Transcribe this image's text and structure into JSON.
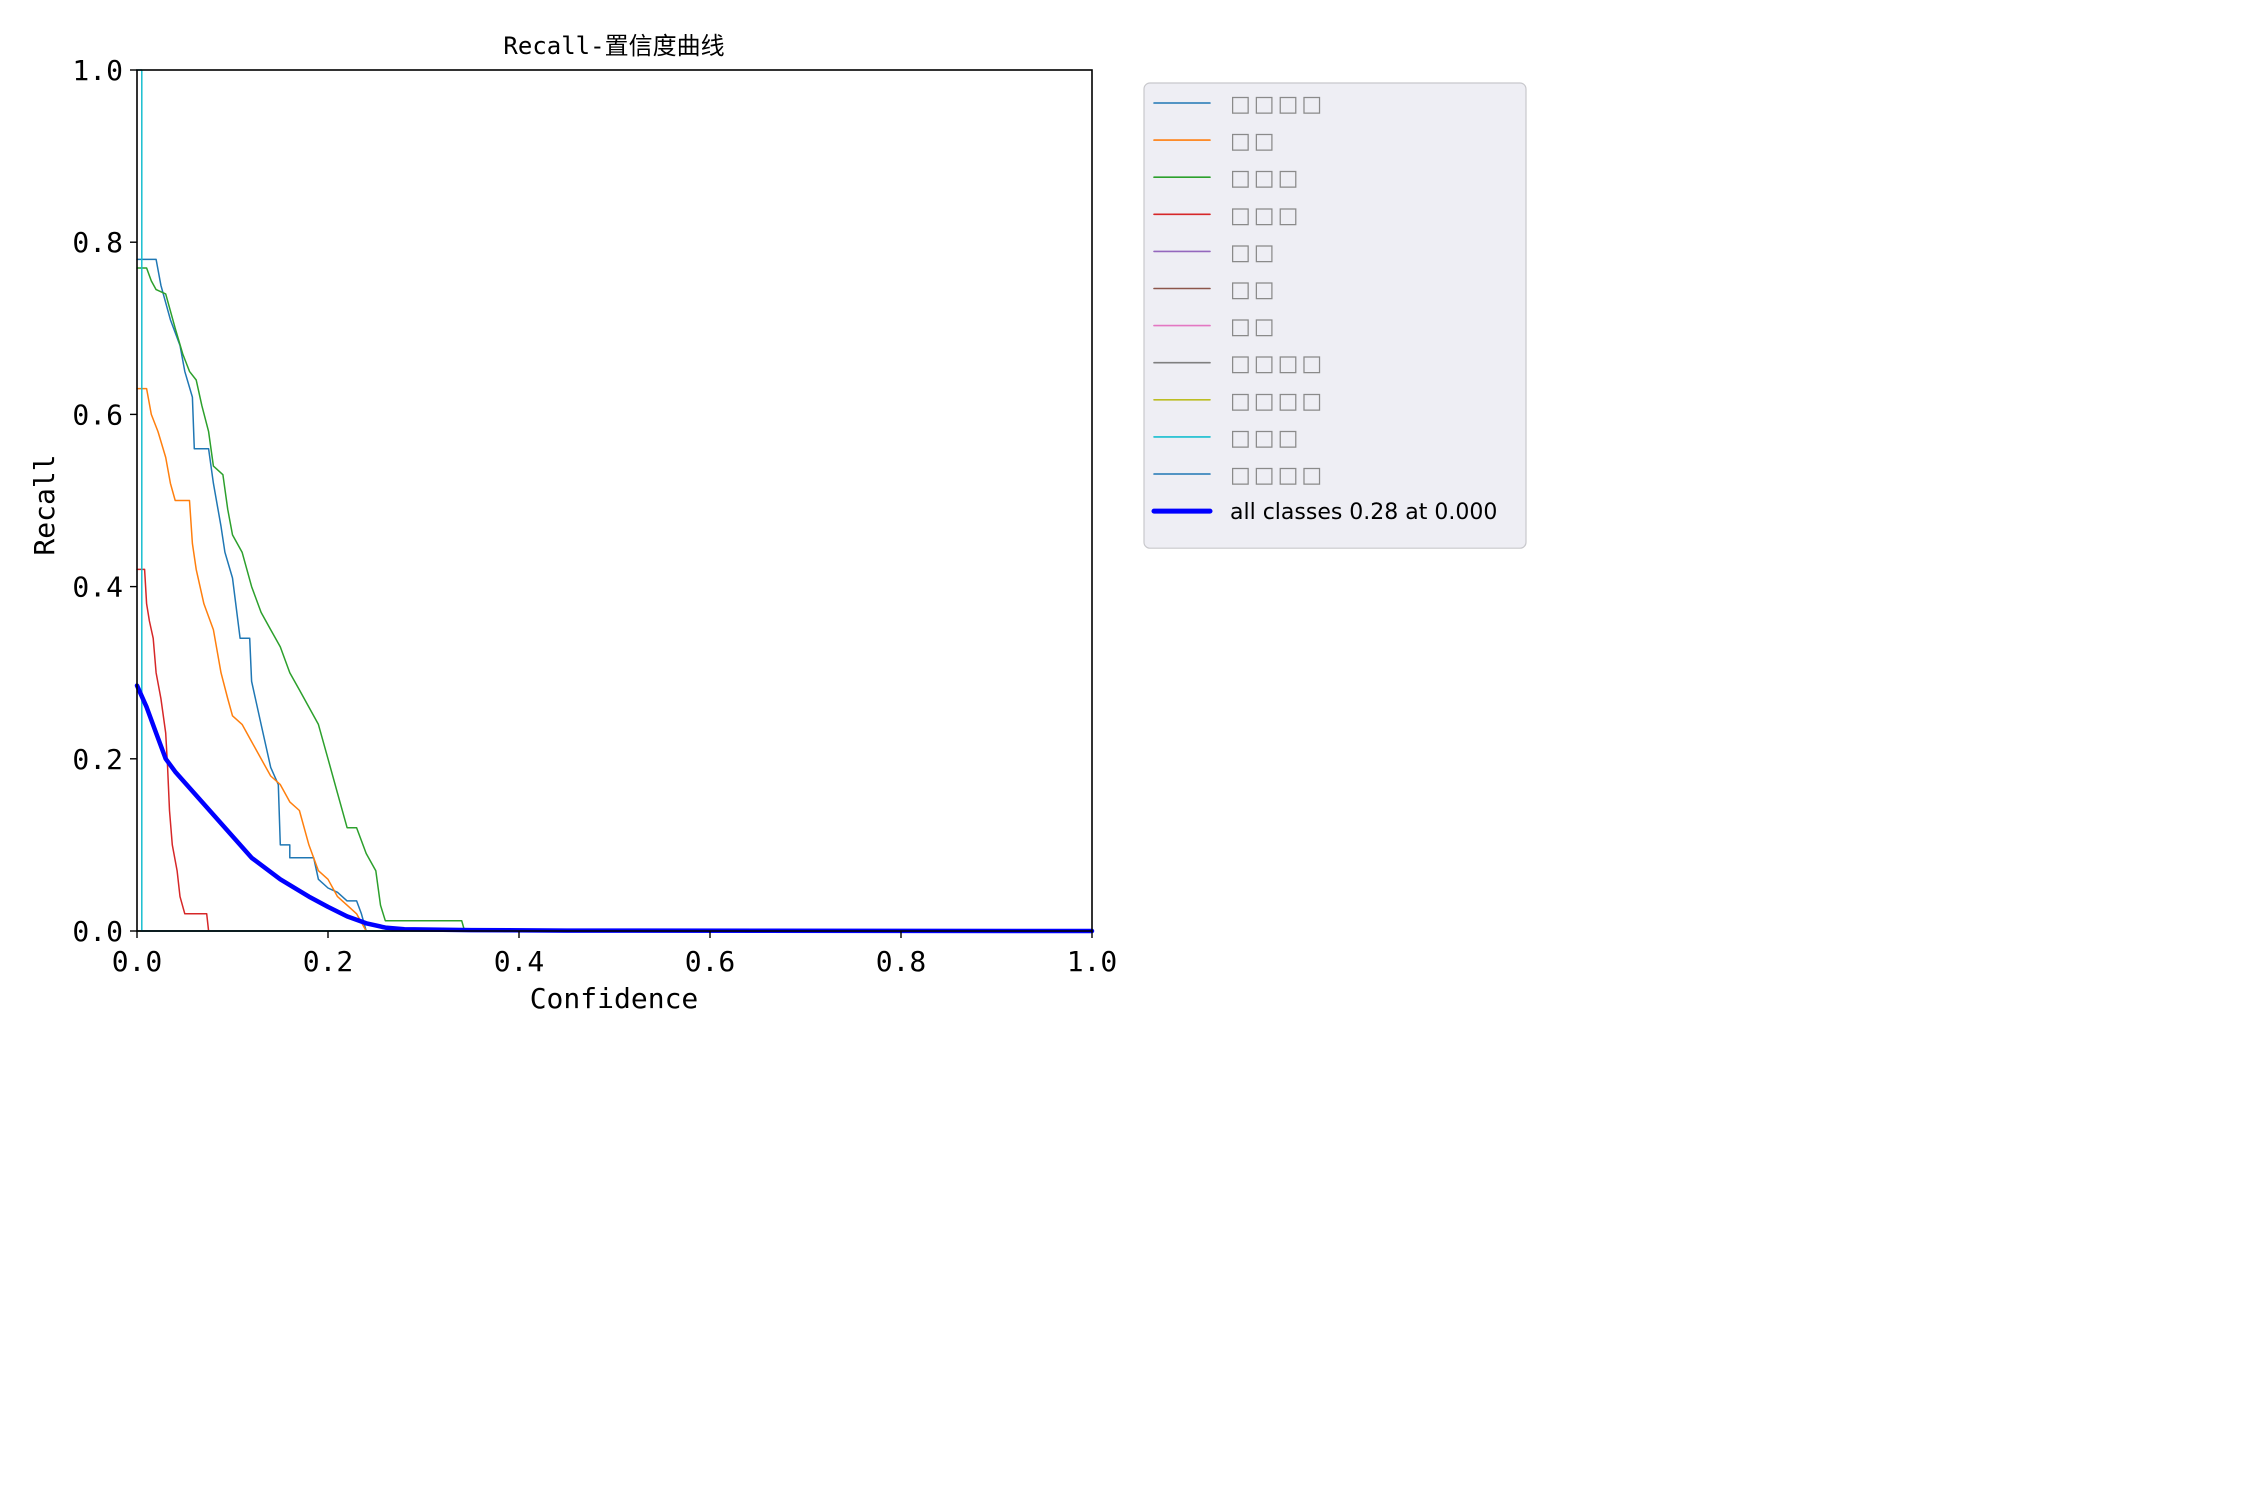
{
  "chart_data": {
    "type": "line",
    "title": "Recall-置信度曲线",
    "xlabel": "Confidence",
    "ylabel": "Recall",
    "xlim": [
      0.0,
      1.0
    ],
    "ylim": [
      0.0,
      1.0
    ],
    "xticks": [
      "0.0",
      "0.2",
      "0.4",
      "0.6",
      "0.8",
      "1.0"
    ],
    "yticks": [
      "0.0",
      "0.2",
      "0.4",
      "0.6",
      "0.8",
      "1.0"
    ],
    "grid": false,
    "legend_position": "outside-right-top",
    "series": [
      {
        "label": "□□□□",
        "color": "#1f77b4",
        "width": 1.5,
        "points": [
          [
            0,
            0.78
          ],
          [
            0.02,
            0.78
          ],
          [
            0.025,
            0.75
          ],
          [
            0.035,
            0.71
          ],
          [
            0.045,
            0.68
          ],
          [
            0.05,
            0.65
          ],
          [
            0.058,
            0.62
          ],
          [
            0.06,
            0.56
          ],
          [
            0.075,
            0.56
          ],
          [
            0.08,
            0.52
          ],
          [
            0.088,
            0.47
          ],
          [
            0.092,
            0.44
          ],
          [
            0.1,
            0.41
          ],
          [
            0.108,
            0.34
          ],
          [
            0.118,
            0.34
          ],
          [
            0.12,
            0.29
          ],
          [
            0.13,
            0.24
          ],
          [
            0.14,
            0.19
          ],
          [
            0.148,
            0.17
          ],
          [
            0.15,
            0.1
          ],
          [
            0.16,
            0.1
          ],
          [
            0.16,
            0.085
          ],
          [
            0.185,
            0.085
          ],
          [
            0.19,
            0.06
          ],
          [
            0.2,
            0.05
          ],
          [
            0.21,
            0.045
          ],
          [
            0.22,
            0.035
          ],
          [
            0.23,
            0.035
          ],
          [
            0.235,
            0.02
          ],
          [
            0.24,
            0.0
          ],
          [
            1.0,
            0.0
          ]
        ]
      },
      {
        "label": "□□",
        "color": "#ff7f0e",
        "width": 1.5,
        "points": [
          [
            0,
            0.63
          ],
          [
            0.01,
            0.63
          ],
          [
            0.015,
            0.6
          ],
          [
            0.022,
            0.58
          ],
          [
            0.03,
            0.55
          ],
          [
            0.035,
            0.52
          ],
          [
            0.04,
            0.5
          ],
          [
            0.055,
            0.5
          ],
          [
            0.058,
            0.45
          ],
          [
            0.062,
            0.42
          ],
          [
            0.07,
            0.38
          ],
          [
            0.08,
            0.35
          ],
          [
            0.088,
            0.3
          ],
          [
            0.095,
            0.27
          ],
          [
            0.1,
            0.25
          ],
          [
            0.11,
            0.24
          ],
          [
            0.12,
            0.22
          ],
          [
            0.13,
            0.2
          ],
          [
            0.14,
            0.18
          ],
          [
            0.15,
            0.17
          ],
          [
            0.16,
            0.15
          ],
          [
            0.17,
            0.14
          ],
          [
            0.18,
            0.1
          ],
          [
            0.19,
            0.07
          ],
          [
            0.2,
            0.06
          ],
          [
            0.21,
            0.04
          ],
          [
            0.22,
            0.03
          ],
          [
            0.23,
            0.02
          ],
          [
            0.24,
            0.0
          ],
          [
            1.0,
            0.0
          ]
        ]
      },
      {
        "label": "□□□",
        "color": "#2ca02c",
        "width": 1.5,
        "points": [
          [
            0,
            0.77
          ],
          [
            0.01,
            0.77
          ],
          [
            0.015,
            0.755
          ],
          [
            0.02,
            0.745
          ],
          [
            0.03,
            0.74
          ],
          [
            0.04,
            0.7
          ],
          [
            0.048,
            0.67
          ],
          [
            0.055,
            0.65
          ],
          [
            0.062,
            0.64
          ],
          [
            0.068,
            0.61
          ],
          [
            0.075,
            0.58
          ],
          [
            0.08,
            0.54
          ],
          [
            0.09,
            0.53
          ],
          [
            0.095,
            0.49
          ],
          [
            0.1,
            0.46
          ],
          [
            0.11,
            0.44
          ],
          [
            0.12,
            0.4
          ],
          [
            0.13,
            0.37
          ],
          [
            0.14,
            0.35
          ],
          [
            0.15,
            0.33
          ],
          [
            0.16,
            0.3
          ],
          [
            0.17,
            0.28
          ],
          [
            0.18,
            0.26
          ],
          [
            0.19,
            0.24
          ],
          [
            0.2,
            0.2
          ],
          [
            0.21,
            0.16
          ],
          [
            0.22,
            0.12
          ],
          [
            0.23,
            0.12
          ],
          [
            0.24,
            0.09
          ],
          [
            0.25,
            0.07
          ],
          [
            0.255,
            0.03
          ],
          [
            0.26,
            0.012
          ],
          [
            0.34,
            0.012
          ],
          [
            0.343,
            0.0
          ],
          [
            1.0,
            0.0
          ]
        ]
      },
      {
        "label": "□□□",
        "color": "#d62728",
        "width": 1.5,
        "points": [
          [
            0,
            0.42
          ],
          [
            0.008,
            0.42
          ],
          [
            0.01,
            0.38
          ],
          [
            0.013,
            0.36
          ],
          [
            0.017,
            0.34
          ],
          [
            0.02,
            0.3
          ],
          [
            0.025,
            0.27
          ],
          [
            0.03,
            0.23
          ],
          [
            0.032,
            0.19
          ],
          [
            0.034,
            0.14
          ],
          [
            0.037,
            0.1
          ],
          [
            0.042,
            0.07
          ],
          [
            0.045,
            0.04
          ],
          [
            0.05,
            0.02
          ],
          [
            0.073,
            0.02
          ],
          [
            0.075,
            0.0
          ],
          [
            1.0,
            0.0
          ]
        ]
      },
      {
        "label": "□□",
        "color": "#9467bd",
        "width": 1.5,
        "points": [
          [
            0,
            0.0
          ],
          [
            1.0,
            0.0
          ]
        ]
      },
      {
        "label": "□□",
        "color": "#8c564b",
        "width": 1.5,
        "points": [
          [
            0,
            0.0
          ],
          [
            1.0,
            0.0
          ]
        ]
      },
      {
        "label": "□□",
        "color": "#e377c2",
        "width": 1.5,
        "points": [
          [
            0,
            0.0
          ],
          [
            1.0,
            0.0
          ]
        ]
      },
      {
        "label": "□□□□",
        "color": "#7f7f7f",
        "width": 1.5,
        "points": [
          [
            0,
            0.0
          ],
          [
            1.0,
            0.0
          ]
        ]
      },
      {
        "label": "□□□□",
        "color": "#bcbd22",
        "width": 1.5,
        "points": [
          [
            0,
            0.0
          ],
          [
            1.0,
            0.0
          ]
        ]
      },
      {
        "label": "□□□",
        "color": "#17becf",
        "width": 1.5,
        "points": [
          [
            0,
            1.0
          ],
          [
            0.005,
            1.0
          ],
          [
            0.005,
            0.0
          ],
          [
            1.0,
            0.0
          ]
        ]
      },
      {
        "label": "□□□□",
        "color": "#1f77b4",
        "width": 1.5,
        "points": [
          [
            0,
            0.0
          ],
          [
            1.0,
            0.0
          ]
        ]
      },
      {
        "label": "all classes 0.28 at 0.000",
        "color": "#0000ff",
        "width": 4.5,
        "points": [
          [
            0,
            0.285
          ],
          [
            0.01,
            0.26
          ],
          [
            0.02,
            0.23
          ],
          [
            0.03,
            0.2
          ],
          [
            0.04,
            0.185
          ],
          [
            0.06,
            0.16
          ],
          [
            0.08,
            0.135
          ],
          [
            0.1,
            0.11
          ],
          [
            0.12,
            0.085
          ],
          [
            0.15,
            0.06
          ],
          [
            0.18,
            0.04
          ],
          [
            0.2,
            0.028
          ],
          [
            0.22,
            0.017
          ],
          [
            0.24,
            0.009
          ],
          [
            0.26,
            0.004
          ],
          [
            0.28,
            0.002
          ],
          [
            0.35,
            0.001
          ],
          [
            0.45,
            0.0005
          ],
          [
            1.0,
            0.0
          ]
        ]
      }
    ]
  }
}
